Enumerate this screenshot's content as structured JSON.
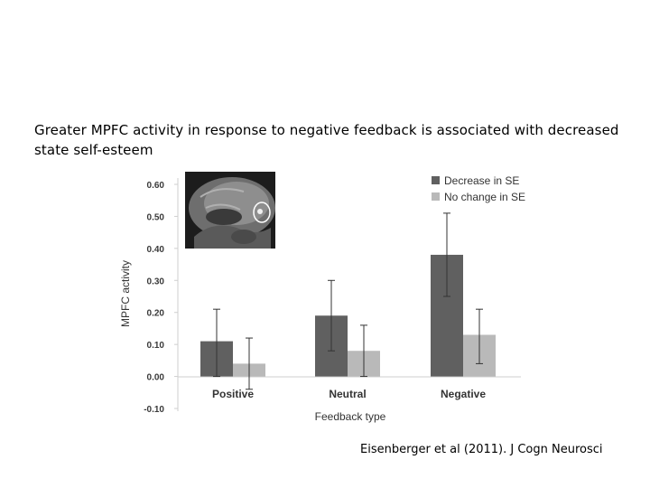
{
  "caption": "Greater MPFC activity in response to negative feedback is associated with decreased state self-esteem",
  "citation": "Eisenberger et al (2011). J Cogn Neurosci",
  "brain_inset": {
    "description_icon": "brain-mri-icon"
  },
  "chart_data": {
    "type": "bar",
    "title": "",
    "xlabel": "Feedback type",
    "ylabel": "MPFC activity",
    "ylim": [
      -0.1,
      0.6
    ],
    "yticks": [
      "0.60",
      "0.50",
      "0.40",
      "0.30",
      "0.20",
      "0.10",
      "0.00",
      "-0.10"
    ],
    "ytick_values": [
      0.6,
      0.5,
      0.4,
      0.3,
      0.2,
      0.1,
      0.0,
      -0.1
    ],
    "categories": [
      "Positive",
      "Neutral",
      "Negative"
    ],
    "legend_position": "top-right",
    "series": [
      {
        "name": "Decrease in SE",
        "color": "#606060",
        "values": [
          0.11,
          0.19,
          0.38
        ],
        "err_low": [
          0.0,
          0.08,
          0.25
        ],
        "err_high": [
          0.21,
          0.3,
          0.51
        ]
      },
      {
        "name": "No change in SE",
        "color": "#b9b9b9",
        "values": [
          0.04,
          0.08,
          0.13
        ],
        "err_low": [
          -0.04,
          0.0,
          0.04
        ],
        "err_high": [
          0.12,
          0.16,
          0.21
        ]
      }
    ]
  }
}
